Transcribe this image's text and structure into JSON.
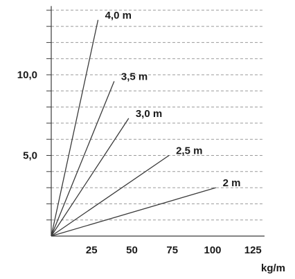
{
  "chart_data": {
    "type": "line",
    "title": "",
    "xlabel": "kg/m",
    "ylabel": "",
    "xlim": [
      0,
      135
    ],
    "ylim": [
      0,
      14
    ],
    "x_ticks": [
      25,
      50,
      75,
      100,
      125
    ],
    "y_ticks": [
      5.0,
      10.0
    ],
    "x_tick_labels": [
      "25",
      "50",
      "75",
      "100",
      "125"
    ],
    "y_tick_labels": [
      "5,0",
      "10,0"
    ],
    "y_gridlines_every": 1,
    "grid": "horizontal dashed",
    "legend": "none",
    "series": [
      {
        "name": "4,0 m",
        "x": [
          0,
          29
        ],
        "y": [
          0,
          13.4
        ]
      },
      {
        "name": "3,5 m",
        "x": [
          0,
          39
        ],
        "y": [
          0,
          9.6
        ]
      },
      {
        "name": "3,0 m",
        "x": [
          0,
          48
        ],
        "y": [
          0,
          7.3
        ]
      },
      {
        "name": "2,5 m",
        "x": [
          0,
          73
        ],
        "y": [
          0,
          5.0
        ]
      },
      {
        "name": "2 m",
        "x": [
          0,
          102
        ],
        "y": [
          0,
          3.0
        ]
      }
    ],
    "colors": {
      "line": "#3a3a3a",
      "grid": "#9a9a9a",
      "axis": "#3a3a3a"
    }
  }
}
